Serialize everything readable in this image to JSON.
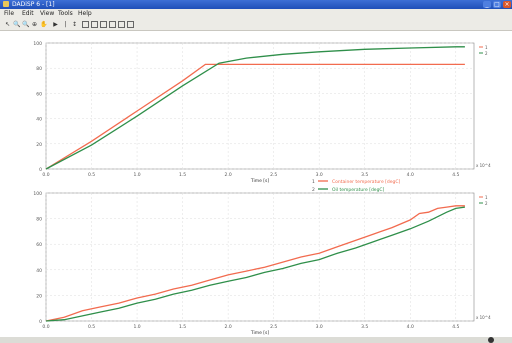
{
  "window": {
    "title": "DADiSP 6 - [1]"
  },
  "window_buttons": {
    "minimize": "_",
    "maximize": "□",
    "close": "×"
  },
  "menu": [
    "File",
    "Edit",
    "View",
    "Tools",
    "Help"
  ],
  "toolbar": [
    "↖",
    "🔍",
    "🔍",
    "⊕",
    "✋",
    "▶",
    "|",
    "↕",
    "▣",
    "▣",
    "▣",
    "▣",
    "▣",
    "▣"
  ],
  "colors": {
    "orange": "#f26b4f",
    "green": "#2f8f4a",
    "grid": "#dcdcdc"
  },
  "chart_data": [
    {
      "type": "line",
      "xlabel": "Time [s]",
      "x_exponent": "x 10^4",
      "ylim": [
        0,
        100
      ],
      "xlim": [
        0,
        4.7
      ],
      "y_ticks": [
        "0",
        "20",
        "40",
        "60",
        "80",
        "100"
      ],
      "x_ticks": [
        "0.0",
        "0.5",
        "1.0",
        "1.5",
        "2.0",
        "2.5",
        "3.0",
        "3.5",
        "4.0",
        "4.5"
      ],
      "legend_side": [
        "1",
        "2"
      ],
      "series": [
        {
          "name": "Container temperature [degC]",
          "color": "#f26b4f",
          "x": [
            0,
            0.5,
            1.0,
            1.5,
            1.75,
            2.0,
            3.0,
            4.0,
            4.5,
            4.6
          ],
          "y": [
            0,
            22,
            46,
            70,
            83,
            83,
            83,
            83,
            83,
            83
          ]
        },
        {
          "name": "Oil temperature [degC]",
          "color": "#2f8f4a",
          "x": [
            0,
            0.5,
            1.0,
            1.5,
            1.9,
            2.2,
            2.6,
            3.0,
            3.5,
            4.0,
            4.5,
            4.6
          ],
          "y": [
            0,
            19,
            42,
            66,
            84,
            88,
            91,
            93,
            95,
            96,
            97,
            97
          ]
        }
      ]
    },
    {
      "type": "line",
      "xlabel": "Time [s]",
      "x_exponent": "x 10^4",
      "ylim": [
        0,
        100
      ],
      "xlim": [
        0,
        4.7
      ],
      "y_ticks": [
        "0",
        "20",
        "40",
        "60",
        "80",
        "100"
      ],
      "x_ticks": [
        "0.0",
        "0.5",
        "1.0",
        "1.5",
        "2.0",
        "2.5",
        "3.0",
        "3.5",
        "4.0",
        "4.5"
      ],
      "legend_side": [
        "1",
        "2"
      ],
      "series": [
        {
          "name": "1",
          "color": "#f26b4f",
          "x": [
            0,
            0.2,
            0.4,
            0.6,
            0.8,
            1.0,
            1.2,
            1.4,
            1.6,
            1.8,
            2.0,
            2.2,
            2.4,
            2.6,
            2.8,
            3.0,
            3.2,
            3.4,
            3.6,
            3.8,
            4.0,
            4.1,
            4.2,
            4.3,
            4.4,
            4.5,
            4.6
          ],
          "y": [
            0,
            3,
            8,
            11,
            14,
            18,
            21,
            25,
            28,
            32,
            36,
            39,
            42,
            46,
            50,
            53,
            58,
            63,
            68,
            73,
            79,
            84,
            85,
            88,
            89,
            90,
            90
          ]
        },
        {
          "name": "2",
          "color": "#2f8f4a",
          "x": [
            0,
            0.2,
            0.4,
            0.6,
            0.8,
            1.0,
            1.2,
            1.4,
            1.6,
            1.8,
            2.0,
            2.2,
            2.4,
            2.6,
            2.8,
            3.0,
            3.2,
            3.4,
            3.6,
            3.8,
            4.0,
            4.2,
            4.4,
            4.5,
            4.6
          ],
          "y": [
            0,
            1,
            4,
            7,
            10,
            14,
            17,
            21,
            24,
            28,
            31,
            34,
            38,
            41,
            45,
            48,
            53,
            57,
            62,
            67,
            72,
            78,
            85,
            88,
            89
          ]
        }
      ]
    }
  ]
}
